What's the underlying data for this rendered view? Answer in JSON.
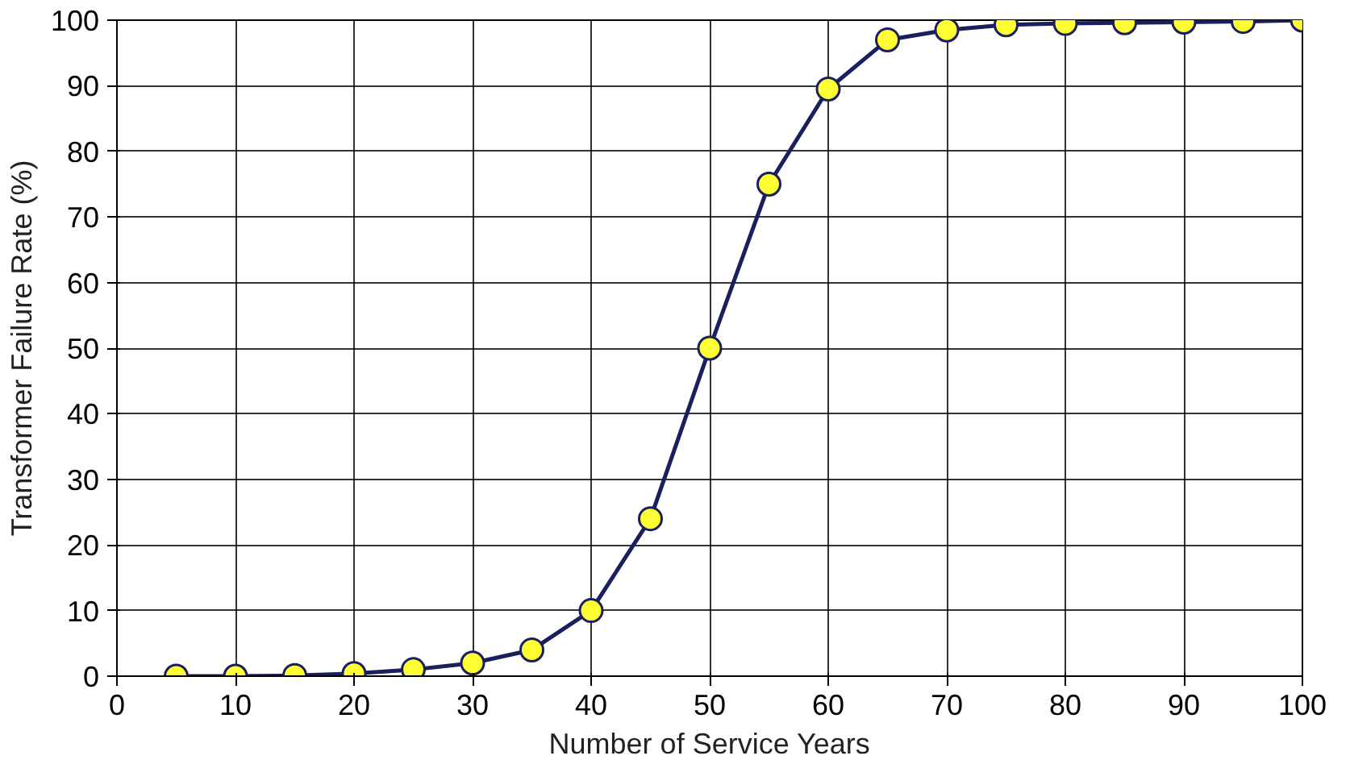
{
  "chart_data": {
    "type": "line",
    "xlabel": "Number of Service Years",
    "ylabel": "Transformer Failure Rate (%)",
    "x": [
      5,
      10,
      15,
      20,
      25,
      30,
      35,
      40,
      45,
      50,
      55,
      60,
      65,
      70,
      75,
      80,
      85,
      90,
      95,
      100
    ],
    "series": [
      {
        "color": "#1a1f5e",
        "values": [
          0,
          0,
          0.1,
          0.4,
          1,
          2,
          4,
          10,
          24,
          50,
          75,
          89.5,
          97,
          98.5,
          99.3,
          99.5,
          99.6,
          99.7,
          99.8,
          100
        ]
      }
    ],
    "xlim": [
      0,
      100
    ],
    "ylim": [
      0,
      100
    ],
    "xticks": [
      0,
      10,
      20,
      30,
      40,
      50,
      60,
      70,
      80,
      90,
      100
    ],
    "yticks": [
      0,
      10,
      20,
      30,
      40,
      50,
      60,
      70,
      80,
      90,
      100
    ],
    "grid": true,
    "marker": "circle",
    "line_style": "solid"
  }
}
